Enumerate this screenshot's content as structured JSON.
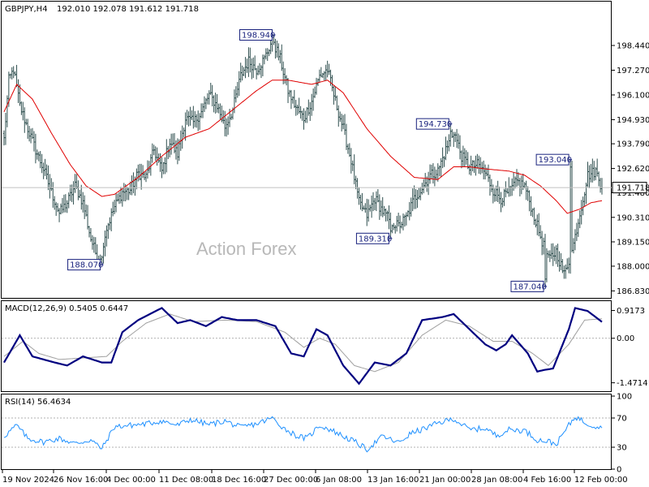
{
  "chart_data": [
    {
      "type": "ohlc",
      "symbol_header": "GBPJPY,H4",
      "ohlc_header": "192.010 192.078 191.612 191.718",
      "last_price": "191.718",
      "watermark": "Action Forex",
      "ylim": [
        186.5,
        199.9
      ],
      "y_ticks": [
        "198.440",
        "197.270",
        "196.100",
        "194.930",
        "193.790",
        "192.620",
        "191.480",
        "190.310",
        "189.150",
        "188.000",
        "186.830"
      ],
      "x_ticks": [
        "19 Nov 2024",
        "26 Nov 16:00",
        "4 Dec 00:00",
        "11 Dec 08:00",
        "18 Dec 16:00",
        "27 Dec 00:00",
        "6 Jan 08:00",
        "13 Jan 16:00",
        "21 Jan 00:00",
        "28 Jan 08:00",
        "4 Feb 16:00",
        "12 Feb 00:00"
      ],
      "series_close_key_points": [
        [
          0,
          194.0
        ],
        [
          3,
          196.8
        ],
        [
          6,
          197.3
        ],
        [
          10,
          195.6
        ],
        [
          15,
          194.5
        ],
        [
          20,
          193.5
        ],
        [
          25,
          192.6
        ],
        [
          30,
          191.5
        ],
        [
          35,
          190.5
        ],
        [
          40,
          191.0
        ],
        [
          45,
          191.8
        ],
        [
          50,
          191.0
        ],
        [
          55,
          189.3
        ],
        [
          60,
          188.2
        ],
        [
          65,
          189.8
        ],
        [
          70,
          190.8
        ],
        [
          75,
          191.5
        ],
        [
          80,
          191.6
        ],
        [
          85,
          192.4
        ],
        [
          90,
          192.2
        ],
        [
          95,
          193.5
        ],
        [
          100,
          192.5
        ],
        [
          105,
          193.9
        ],
        [
          110,
          193.3
        ],
        [
          115,
          195.0
        ],
        [
          120,
          194.8
        ],
        [
          125,
          195.3
        ],
        [
          130,
          196.1
        ],
        [
          135,
          195.6
        ],
        [
          140,
          194.6
        ],
        [
          145,
          195.4
        ],
        [
          150,
          197.0
        ],
        [
          155,
          197.7
        ],
        [
          160,
          197.3
        ],
        [
          165,
          197.8
        ],
        [
          170,
          198.7
        ],
        [
          175,
          197.8
        ],
        [
          180,
          196.3
        ],
        [
          185,
          195.5
        ],
        [
          190,
          195.0
        ],
        [
          195,
          195.8
        ],
        [
          200,
          197.0
        ],
        [
          205,
          197.3
        ],
        [
          210,
          195.8
        ],
        [
          215,
          194.5
        ],
        [
          220,
          193.0
        ],
        [
          225,
          191.0
        ],
        [
          230,
          190.4
        ],
        [
          235,
          191.2
        ],
        [
          240,
          190.6
        ],
        [
          245,
          190.1
        ],
        [
          250,
          189.9
        ],
        [
          255,
          190.3
        ],
        [
          260,
          191.2
        ],
        [
          265,
          191.7
        ],
        [
          270,
          192.3
        ],
        [
          275,
          192.5
        ],
        [
          280,
          193.5
        ],
        [
          285,
          194.4
        ],
        [
          290,
          193.2
        ],
        [
          295,
          192.7
        ],
        [
          300,
          192.8
        ],
        [
          305,
          192.4
        ],
        [
          310,
          191.6
        ],
        [
          315,
          191.2
        ],
        [
          320,
          191.5
        ],
        [
          325,
          192.0
        ],
        [
          330,
          191.8
        ],
        [
          335,
          190.6
        ],
        [
          340,
          189.4
        ],
        [
          345,
          188.3
        ],
        [
          350,
          188.7
        ],
        [
          355,
          187.6
        ],
        [
          360,
          188.7
        ],
        [
          365,
          190.5
        ],
        [
          370,
          192.3
        ],
        [
          375,
          192.5
        ],
        [
          379,
          191.718
        ]
      ],
      "ma_key_points": [
        [
          0,
          195.3
        ],
        [
          8,
          196.6
        ],
        [
          18,
          195.9
        ],
        [
          30,
          194.3
        ],
        [
          42,
          192.8
        ],
        [
          52,
          191.8
        ],
        [
          62,
          191.3
        ],
        [
          70,
          191.4
        ],
        [
          85,
          192.2
        ],
        [
          100,
          193.2
        ],
        [
          115,
          194.1
        ],
        [
          130,
          194.5
        ],
        [
          145,
          195.4
        ],
        [
          160,
          196.3
        ],
        [
          170,
          196.8
        ],
        [
          180,
          196.8
        ],
        [
          195,
          196.6
        ],
        [
          205,
          196.8
        ],
        [
          215,
          196.2
        ],
        [
          230,
          194.5
        ],
        [
          245,
          193.2
        ],
        [
          260,
          192.2
        ],
        [
          275,
          192.1
        ],
        [
          285,
          192.7
        ],
        [
          295,
          192.7
        ],
        [
          305,
          192.6
        ],
        [
          320,
          192.5
        ],
        [
          330,
          192.3
        ],
        [
          340,
          191.8
        ],
        [
          350,
          191.1
        ],
        [
          357,
          190.5
        ],
        [
          365,
          190.7
        ],
        [
          372,
          191.0
        ],
        [
          379,
          191.1
        ]
      ],
      "annotations": [
        {
          "label": "198.940",
          "bar": 171,
          "price": 198.94,
          "side": "high"
        },
        {
          "label": "188.070",
          "bar": 62,
          "price": 188.07,
          "side": "low"
        },
        {
          "label": "189.310",
          "bar": 245,
          "price": 189.31,
          "side": "low"
        },
        {
          "label": "194.730",
          "bar": 283,
          "price": 194.73,
          "side": "high"
        },
        {
          "label": "193.040",
          "bar": 359,
          "price": 193.04,
          "side": "high"
        },
        {
          "label": "187.040",
          "bar": 343,
          "price": 187.04,
          "side": "low"
        }
      ]
    },
    {
      "type": "line",
      "title": "MACD(12,26,9) 0.5405 0.6447",
      "ylim": [
        -1.75,
        1.2
      ],
      "y_ticks": [
        "0.9173",
        "0.00",
        "-1.4714"
      ],
      "macd_key_points": [
        [
          0,
          -0.8
        ],
        [
          10,
          0.1
        ],
        [
          18,
          -0.6
        ],
        [
          32,
          -0.8
        ],
        [
          40,
          -0.9
        ],
        [
          50,
          -0.6
        ],
        [
          62,
          -0.8
        ],
        [
          68,
          -0.8
        ],
        [
          75,
          0.2
        ],
        [
          85,
          0.6
        ],
        [
          100,
          1.0
        ],
        [
          110,
          0.5
        ],
        [
          118,
          0.6
        ],
        [
          128,
          0.4
        ],
        [
          138,
          0.7
        ],
        [
          148,
          0.6
        ],
        [
          160,
          0.6
        ],
        [
          172,
          0.4
        ],
        [
          182,
          -0.5
        ],
        [
          190,
          -0.6
        ],
        [
          198,
          0.3
        ],
        [
          205,
          0.1
        ],
        [
          215,
          -0.9
        ],
        [
          225,
          -1.5
        ],
        [
          235,
          -0.8
        ],
        [
          245,
          -0.9
        ],
        [
          255,
          -0.5
        ],
        [
          265,
          0.6
        ],
        [
          278,
          0.7
        ],
        [
          285,
          0.8
        ],
        [
          295,
          0.3
        ],
        [
          305,
          -0.2
        ],
        [
          312,
          -0.4
        ],
        [
          318,
          -0.2
        ],
        [
          322,
          0.1
        ],
        [
          332,
          -0.5
        ],
        [
          338,
          -1.1
        ],
        [
          342,
          -1.05
        ],
        [
          348,
          -1.0
        ],
        [
          358,
          0.3
        ],
        [
          362,
          1.0
        ],
        [
          370,
          0.9
        ],
        [
          379,
          0.5405
        ]
      ],
      "signal_key_points": [
        [
          0,
          -0.6
        ],
        [
          12,
          -0.1
        ],
        [
          22,
          -0.5
        ],
        [
          35,
          -0.7
        ],
        [
          50,
          -0.65
        ],
        [
          65,
          -0.6
        ],
        [
          75,
          -0.1
        ],
        [
          90,
          0.5
        ],
        [
          105,
          0.8
        ],
        [
          120,
          0.55
        ],
        [
          140,
          0.6
        ],
        [
          160,
          0.55
        ],
        [
          178,
          0.2
        ],
        [
          190,
          -0.3
        ],
        [
          200,
          0.0
        ],
        [
          210,
          -0.2
        ],
        [
          222,
          -0.9
        ],
        [
          235,
          -1.1
        ],
        [
          250,
          -0.8
        ],
        [
          265,
          0.1
        ],
        [
          280,
          0.6
        ],
        [
          295,
          0.4
        ],
        [
          310,
          -0.1
        ],
        [
          322,
          -0.1
        ],
        [
          335,
          -0.5
        ],
        [
          345,
          -0.9
        ],
        [
          358,
          -0.2
        ],
        [
          368,
          0.6
        ],
        [
          379,
          0.6447
        ]
      ]
    },
    {
      "type": "line",
      "title": "RSI(14) 56.4634",
      "ylim": [
        0,
        100
      ],
      "y_ticks": [
        "100",
        "70",
        "30",
        "0"
      ],
      "levels": [
        70,
        30
      ],
      "rsi_key_points": [
        [
          0,
          45
        ],
        [
          8,
          60
        ],
        [
          15,
          42
        ],
        [
          25,
          37
        ],
        [
          35,
          42
        ],
        [
          45,
          35
        ],
        [
          55,
          40
        ],
        [
          62,
          28
        ],
        [
          70,
          58
        ],
        [
          80,
          60
        ],
        [
          90,
          62
        ],
        [
          100,
          66
        ],
        [
          110,
          60
        ],
        [
          118,
          68
        ],
        [
          130,
          61
        ],
        [
          140,
          66
        ],
        [
          150,
          57
        ],
        [
          160,
          62
        ],
        [
          170,
          70
        ],
        [
          178,
          55
        ],
        [
          186,
          45
        ],
        [
          192,
          42
        ],
        [
          200,
          60
        ],
        [
          208,
          53
        ],
        [
          215,
          45
        ],
        [
          222,
          38
        ],
        [
          230,
          27
        ],
        [
          240,
          45
        ],
        [
          250,
          36
        ],
        [
          258,
          49
        ],
        [
          266,
          55
        ],
        [
          275,
          63
        ],
        [
          285,
          69
        ],
        [
          295,
          54
        ],
        [
          305,
          56
        ],
        [
          312,
          46
        ],
        [
          320,
          54
        ],
        [
          330,
          53
        ],
        [
          338,
          40
        ],
        [
          345,
          38
        ],
        [
          350,
          34
        ],
        [
          358,
          60
        ],
        [
          362,
          72
        ],
        [
          370,
          62
        ],
        [
          379,
          56.4634
        ]
      ]
    }
  ]
}
